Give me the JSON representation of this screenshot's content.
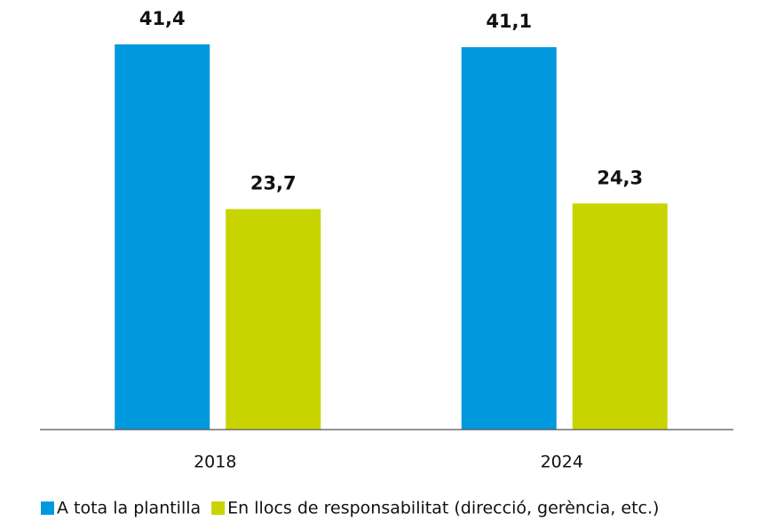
{
  "chart_data": {
    "type": "bar",
    "categories": [
      "2018",
      "2024"
    ],
    "series": [
      {
        "name": "A tota la plantilla",
        "color": "#0099dd",
        "values": [
          41.4,
          41.1
        ],
        "value_labels": [
          "41,4",
          "41,1"
        ]
      },
      {
        "name": "En llocs de responsabilitat (direcció, gerència, etc.)",
        "color": "#c8d400",
        "values": [
          23.7,
          24.3
        ],
        "value_labels": [
          "23,7",
          "24,3"
        ]
      }
    ],
    "legend": "bottom-left"
  }
}
